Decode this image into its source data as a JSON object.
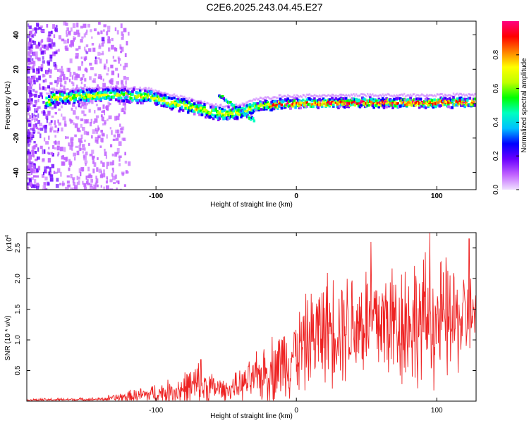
{
  "title": "C2E6.2025.243.04.45.E27",
  "chart_data": [
    {
      "type": "heatmap",
      "title": "C2E6.2025.243.04.45.E27",
      "xlabel": "Height of straight line (km)",
      "ylabel": "Frequency (Hz)",
      "xlim": [
        -192,
        128
      ],
      "ylim": [
        -50,
        48
      ],
      "xticks": [
        -100,
        0,
        100
      ],
      "yticks": [
        -40,
        -20,
        0,
        20,
        40
      ],
      "colorbar": {
        "label": "Normalized spectral amplitude",
        "range": [
          0.0,
          1.0
        ],
        "ticks": [
          0.0,
          0.2,
          0.4,
          0.6,
          0.8
        ],
        "tick_labels": [
          "0.0",
          "0.2",
          "0.4",
          "0.6",
          "0.8"
        ],
        "colors": [
          "#f0e0ff",
          "#c060ff",
          "#6a00ff",
          "#0000ff",
          "#00c0ff",
          "#00ffc0",
          "#00ff00",
          "#c0ff00",
          "#ffff00",
          "#ff8000",
          "#ff0000",
          "#ff0080"
        ]
      },
      "ridge": [
        {
          "x": -175,
          "f": 3.5
        },
        {
          "x": -150,
          "f": 4.5
        },
        {
          "x": -125,
          "f": 5
        },
        {
          "x": -105,
          "f": 4
        },
        {
          "x": -90,
          "f": 1
        },
        {
          "x": -75,
          "f": -2
        },
        {
          "x": -60,
          "f": -5
        },
        {
          "x": -50,
          "f": -6
        },
        {
          "x": -40,
          "f": -5
        },
        {
          "x": -30,
          "f": -2
        },
        {
          "x": -10,
          "f": 0
        },
        {
          "x": 20,
          "f": 0.5
        },
        {
          "x": 60,
          "f": 0.5
        },
        {
          "x": 100,
          "f": 0.5
        },
        {
          "x": 128,
          "f": 1
        }
      ]
    },
    {
      "type": "line",
      "xlabel": "Height of straight line (km)",
      "ylabel": "SNR (10 * v/v)",
      "y_multiplier": "(x10",
      "y_multiplier_exp": "4",
      "xlim": [
        -192,
        128
      ],
      "ylim": [
        0,
        2.75
      ],
      "xticks": [
        -100,
        0,
        100
      ],
      "yticks": [
        0.5,
        1.0,
        1.5,
        2.0,
        2.5
      ],
      "series": [
        {
          "name": "SNR",
          "color": "#ee2222",
          "envelope": [
            {
              "x": -192,
              "base": 0.02,
              "amp": 0.02
            },
            {
              "x": -140,
              "base": 0.03,
              "amp": 0.03
            },
            {
              "x": -115,
              "base": 0.08,
              "amp": 0.12
            },
            {
              "x": -90,
              "base": 0.15,
              "amp": 0.2
            },
            {
              "x": -70,
              "base": 0.25,
              "amp": 0.4
            },
            {
              "x": -50,
              "base": 0.18,
              "amp": 0.15
            },
            {
              "x": -35,
              "base": 0.3,
              "amp": 0.3
            },
            {
              "x": -15,
              "base": 0.55,
              "amp": 0.6
            },
            {
              "x": 0,
              "base": 0.8,
              "amp": 0.7
            },
            {
              "x": 20,
              "base": 1.2,
              "amp": 0.9
            },
            {
              "x": 50,
              "base": 1.3,
              "amp": 1.0
            },
            {
              "x": 80,
              "base": 1.3,
              "amp": 1.1
            },
            {
              "x": 110,
              "base": 1.3,
              "amp": 1.0
            },
            {
              "x": 128,
              "base": 1.4,
              "amp": 0.6
            }
          ],
          "peaks": [
            {
              "x": -68,
              "y": 0.68
            },
            {
              "x": 53,
              "y": 2.6
            },
            {
              "x": 95,
              "y": 2.75
            },
            {
              "x": 123,
              "y": 2.65
            }
          ]
        }
      ]
    }
  ]
}
